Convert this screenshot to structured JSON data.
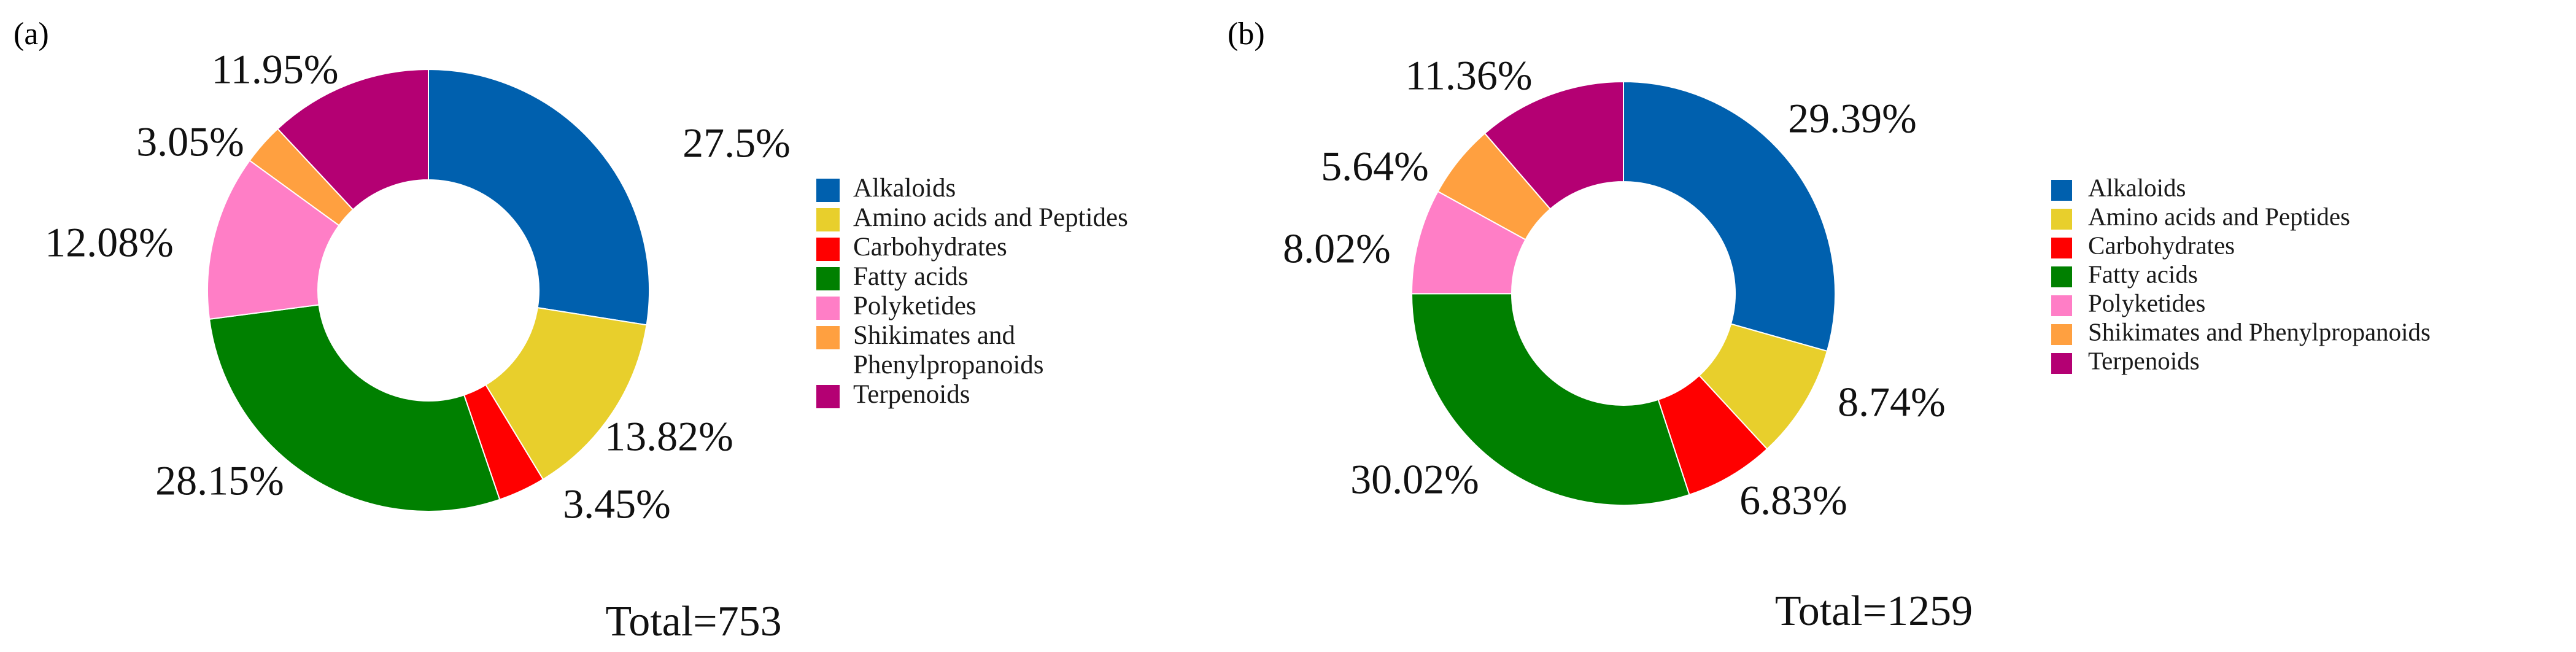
{
  "chart_data": [
    {
      "type": "pie",
      "panel_label": "(a)",
      "total_label": "Total=753",
      "legend_placement": "right",
      "slices": [
        {
          "name": "Alkaloids",
          "value": 27.5,
          "label": "27.5%",
          "color": "#0060ae"
        },
        {
          "name": "Amino acids and Peptides",
          "value": 13.82,
          "label": "13.82%",
          "color": "#e8cf2c"
        },
        {
          "name": "Carbohydrates",
          "value": 3.45,
          "label": "3.45%",
          "color": "#ff0000"
        },
        {
          "name": "Fatty acids",
          "value": 28.15,
          "label": "28.15%",
          "color": "#008000"
        },
        {
          "name": "Polyketides",
          "value": 12.08,
          "label": "12.08%",
          "color": "#ff7ec6"
        },
        {
          "name": "Shikimates and Phenylpropanoids",
          "value": 3.05,
          "label": "3.05%",
          "color": "#ffa040"
        },
        {
          "name": "Terpenoids",
          "value": 11.95,
          "label": "11.95%",
          "color": "#b40073"
        }
      ],
      "legend": [
        {
          "lines": [
            "Alkaloids"
          ],
          "color": "#0060ae"
        },
        {
          "lines": [
            "Amino acids and Peptides"
          ],
          "color": "#e8cf2c"
        },
        {
          "lines": [
            "Carbohydrates"
          ],
          "color": "#ff0000"
        },
        {
          "lines": [
            "Fatty acids"
          ],
          "color": "#008000"
        },
        {
          "lines": [
            "Polyketides"
          ],
          "color": "#ff7ec6"
        },
        {
          "lines": [
            "Shikimates and",
            "Phenylpropanoids"
          ],
          "color": "#ffa040"
        },
        {
          "lines": [
            "Terpenoids"
          ],
          "color": "#b40073"
        }
      ]
    },
    {
      "type": "pie",
      "panel_label": "(b)",
      "total_label": "Total=1259",
      "legend_placement": "right",
      "slices": [
        {
          "name": "Alkaloids",
          "value": 29.39,
          "label": "29.39%",
          "color": "#0060ae"
        },
        {
          "name": "Amino acids and Peptides",
          "value": 8.74,
          "label": "8.74%",
          "color": "#e8cf2c"
        },
        {
          "name": "Carbohydrates",
          "value": 6.83,
          "label": "6.83%",
          "color": "#ff0000"
        },
        {
          "name": "Fatty acids",
          "value": 30.02,
          "label": "30.02%",
          "color": "#008000"
        },
        {
          "name": "Polyketides",
          "value": 8.02,
          "label": "8.02%",
          "color": "#ff7ec6"
        },
        {
          "name": "Shikimates and Phenylpropanoids",
          "value": 5.64,
          "label": "5.64%",
          "color": "#ffa040"
        },
        {
          "name": "Terpenoids",
          "value": 11.36,
          "label": "11.36%",
          "color": "#b40073"
        }
      ],
      "legend": [
        {
          "lines": [
            "Alkaloids"
          ],
          "color": "#0060ae"
        },
        {
          "lines": [
            "Amino acids and Peptides"
          ],
          "color": "#e8cf2c"
        },
        {
          "lines": [
            "Carbohydrates"
          ],
          "color": "#ff0000"
        },
        {
          "lines": [
            "Fatty acids"
          ],
          "color": "#008000"
        },
        {
          "lines": [
            "Polyketides"
          ],
          "color": "#ff7ec6"
        },
        {
          "lines": [
            "Shikimates and Phenylpropanoids"
          ],
          "color": "#ffa040"
        },
        {
          "lines": [
            "Terpenoids"
          ],
          "color": "#b40073"
        }
      ]
    }
  ]
}
